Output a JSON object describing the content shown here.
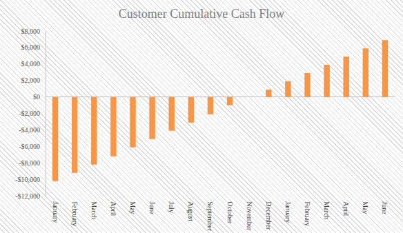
{
  "chart_data": {
    "type": "bar",
    "title": "Customer Cumulative Cash Flow",
    "categories": [
      "January",
      "February",
      "March",
      "April",
      "May",
      "June",
      "July",
      "August",
      "September",
      "October",
      "November",
      "December",
      "January",
      "February",
      "March",
      "April",
      "May",
      "June"
    ],
    "values": [
      -10200,
      -9200,
      -8200,
      -7200,
      -6100,
      -5100,
      -4100,
      -3100,
      -2100,
      -1000,
      0,
      900,
      1900,
      2900,
      3900,
      4900,
      5900,
      6900
    ],
    "color": "#f79646",
    "ylim": [
      -12000,
      8000
    ],
    "yticks": [
      {
        "value": -12000,
        "label": "-$12,000"
      },
      {
        "value": -10000,
        "label": "-$10,000"
      },
      {
        "value": -8000,
        "label": "-$8,000"
      },
      {
        "value": -6000,
        "label": "-$6,000"
      },
      {
        "value": -4000,
        "label": "-$4,000"
      },
      {
        "value": -2000,
        "label": "-$2,000"
      },
      {
        "value": 0,
        "label": "$0"
      },
      {
        "value": 2000,
        "label": "$2,000"
      },
      {
        "value": 4000,
        "label": "$4,000"
      },
      {
        "value": 6000,
        "label": "$6,000"
      },
      {
        "value": 8000,
        "label": "$8,000"
      }
    ],
    "grid": false
  }
}
